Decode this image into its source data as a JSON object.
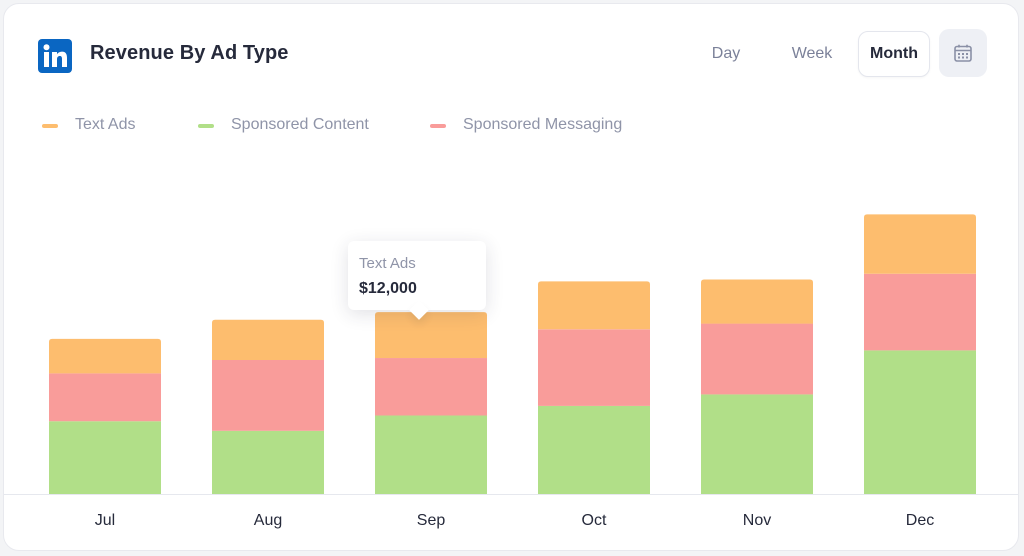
{
  "header": {
    "title": "Revenue By Ad Type",
    "logo_icon": "linkedin-icon"
  },
  "period": {
    "options": [
      {
        "key": "day",
        "label": "Day"
      },
      {
        "key": "week",
        "label": "Week"
      },
      {
        "key": "month",
        "label": "Month"
      }
    ],
    "selected": "month",
    "calendar_icon": "calendar-icon"
  },
  "colors": {
    "text_ads": "#fdbd6e",
    "sponsored_content": "#b1df88",
    "sponsored_messaging": "#f99c9a"
  },
  "tooltip": {
    "series": "Text Ads",
    "value": "$12,000",
    "category": "Sep"
  },
  "chart_data": {
    "type": "bar",
    "stacked": true,
    "categories": [
      "Jul",
      "Aug",
      "Sep",
      "Oct",
      "Nov",
      "Dec"
    ],
    "series": [
      {
        "name": "Sponsored Content",
        "color": "#b1df88",
        "values": [
          19000,
          16500,
          20500,
          23000,
          26000,
          37500
        ]
      },
      {
        "name": "Sponsored Messaging",
        "color": "#f99c9a",
        "values": [
          12500,
          18500,
          15000,
          20000,
          18500,
          20000
        ]
      },
      {
        "name": "Text Ads",
        "color": "#fdbd6e",
        "values": [
          9000,
          10500,
          12000,
          12500,
          11500,
          15500
        ]
      }
    ],
    "legend": [
      "Text Ads",
      "Sponsored Content",
      "Sponsored Messaging"
    ],
    "legend_position": "top-left",
    "ylim": [
      0,
      100000
    ],
    "grid": false,
    "y_axis_visible": false
  }
}
